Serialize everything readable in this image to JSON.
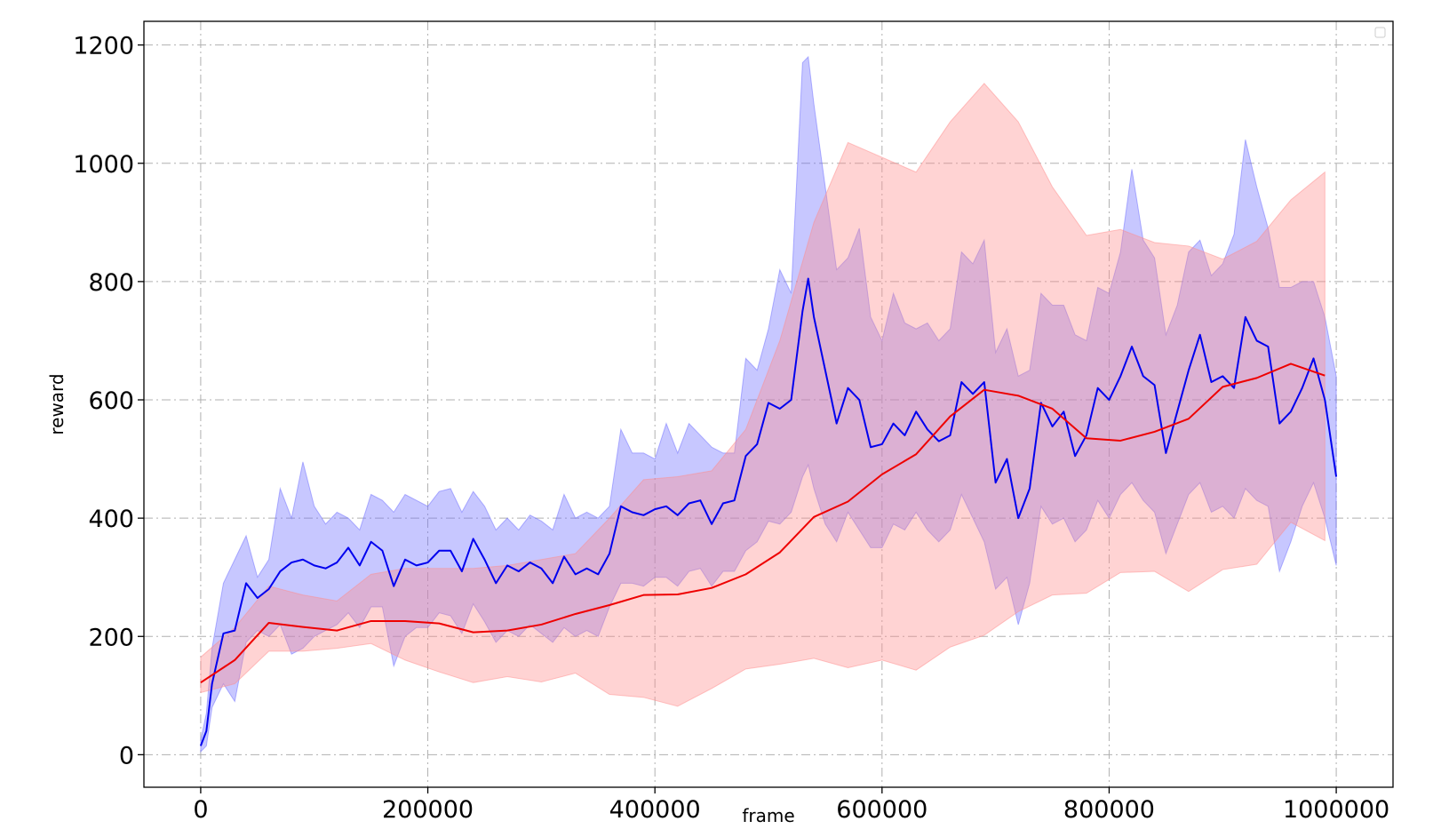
{
  "chart_data": {
    "type": "line",
    "title": "",
    "xlabel": "frame",
    "ylabel": "reward",
    "xlim": [
      -50000,
      1050000
    ],
    "ylim": [
      -55,
      1240
    ],
    "x_ticks": [
      0,
      200000,
      400000,
      600000,
      800000,
      1000000
    ],
    "x_tick_labels": [
      "0",
      "200000",
      "400000",
      "600000",
      "800000",
      "1000000"
    ],
    "y_ticks": [
      0,
      200,
      400,
      600,
      800,
      1000,
      1200
    ],
    "y_tick_labels": [
      "0",
      "200",
      "400",
      "600",
      "800",
      "1000",
      "1200"
    ],
    "grid": true,
    "legend": {
      "placement": "top-right",
      "entries": []
    },
    "series": [
      {
        "color": "#0000ee",
        "band_color": "#6b6bff",
        "x": [
          0,
          5000,
          10000,
          20000,
          30000,
          40000,
          50000,
          60000,
          70000,
          80000,
          90000,
          100000,
          110000,
          120000,
          130000,
          140000,
          150000,
          160000,
          170000,
          180000,
          190000,
          200000,
          210000,
          220000,
          230000,
          240000,
          250000,
          260000,
          270000,
          280000,
          290000,
          300000,
          310000,
          320000,
          330000,
          340000,
          350000,
          360000,
          370000,
          380000,
          390000,
          400000,
          410000,
          420000,
          430000,
          440000,
          450000,
          460000,
          470000,
          480000,
          490000,
          500000,
          510000,
          520000,
          530000,
          535000,
          540000,
          550000,
          560000,
          570000,
          580000,
          590000,
          600000,
          610000,
          620000,
          630000,
          640000,
          650000,
          660000,
          670000,
          680000,
          690000,
          700000,
          710000,
          720000,
          730000,
          740000,
          750000,
          760000,
          770000,
          780000,
          790000,
          800000,
          810000,
          820000,
          830000,
          840000,
          850000,
          860000,
          870000,
          880000,
          890000,
          900000,
          910000,
          920000,
          930000,
          940000,
          950000,
          960000,
          970000,
          980000,
          990000,
          1000000
        ],
        "y": [
          15,
          40,
          120,
          205,
          210,
          290,
          265,
          280,
          310,
          325,
          330,
          320,
          315,
          325,
          350,
          320,
          360,
          345,
          285,
          330,
          320,
          325,
          345,
          345,
          310,
          365,
          330,
          290,
          320,
          310,
          325,
          315,
          290,
          335,
          305,
          315,
          305,
          340,
          420,
          410,
          405,
          415,
          420,
          405,
          425,
          430,
          390,
          425,
          430,
          505,
          525,
          595,
          585,
          600,
          750,
          805,
          740,
          650,
          560,
          620,
          600,
          520,
          525,
          560,
          540,
          580,
          550,
          530,
          540,
          630,
          610,
          630,
          460,
          500,
          400,
          450,
          595,
          555,
          580,
          505,
          540,
          620,
          600,
          640,
          690,
          640,
          625,
          510,
          580,
          650,
          710,
          630,
          640,
          620,
          740,
          700,
          690,
          560,
          580,
          620,
          670,
          600,
          470
        ],
        "lower": [
          5,
          15,
          80,
          120,
          90,
          190,
          210,
          200,
          220,
          170,
          180,
          200,
          210,
          220,
          240,
          215,
          250,
          250,
          150,
          200,
          215,
          215,
          240,
          235,
          205,
          255,
          225,
          190,
          210,
          200,
          220,
          205,
          190,
          215,
          200,
          210,
          200,
          250,
          290,
          290,
          285,
          300,
          300,
          285,
          310,
          315,
          285,
          310,
          310,
          345,
          360,
          395,
          390,
          410,
          470,
          490,
          450,
          390,
          360,
          410,
          380,
          350,
          350,
          390,
          380,
          410,
          380,
          360,
          380,
          440,
          400,
          360,
          280,
          300,
          220,
          290,
          420,
          390,
          400,
          360,
          380,
          430,
          400,
          440,
          460,
          430,
          410,
          340,
          390,
          440,
          460,
          410,
          420,
          400,
          450,
          430,
          420,
          310,
          360,
          420,
          460,
          400,
          320
        ],
        "upper": [
          25,
          70,
          180,
          290,
          330,
          370,
          300,
          330,
          450,
          400,
          495,
          420,
          390,
          410,
          400,
          380,
          440,
          430,
          410,
          440,
          430,
          420,
          445,
          450,
          410,
          445,
          420,
          380,
          400,
          380,
          405,
          395,
          380,
          440,
          400,
          410,
          400,
          420,
          550,
          510,
          510,
          500,
          560,
          510,
          560,
          540,
          520,
          510,
          510,
          670,
          650,
          720,
          820,
          780,
          1170,
          1180,
          1100,
          960,
          820,
          840,
          890,
          740,
          700,
          780,
          730,
          720,
          730,
          700,
          720,
          850,
          830,
          870,
          680,
          720,
          640,
          650,
          780,
          760,
          760,
          710,
          700,
          790,
          780,
          850,
          990,
          870,
          840,
          710,
          760,
          850,
          870,
          810,
          830,
          880,
          1040,
          960,
          890,
          790,
          790,
          800,
          800,
          740,
          640
        ]
      },
      {
        "color": "#ee0000",
        "band_color": "#ff8c8c",
        "x": [
          0,
          30000,
          60000,
          90000,
          120000,
          150000,
          180000,
          210000,
          240000,
          270000,
          300000,
          330000,
          360000,
          390000,
          420000,
          450000,
          480000,
          510000,
          540000,
          570000,
          600000,
          630000,
          660000,
          690000,
          720000,
          750000,
          780000,
          810000,
          840000,
          870000,
          900000,
          930000,
          960000,
          990000
        ],
        "y": [
          122,
          160,
          223,
          216,
          210,
          226,
          226,
          222,
          207,
          210,
          220,
          238,
          253,
          270,
          271,
          282,
          305,
          342,
          402,
          428,
          474,
          508,
          572,
          617,
          607,
          585,
          535,
          531,
          546,
          568,
          622,
          637,
          661,
          641
        ],
        "lower": [
          105,
          120,
          175,
          175,
          180,
          188,
          160,
          140,
          122,
          132,
          123,
          138,
          102,
          97,
          82,
          112,
          145,
          153,
          163,
          147,
          160,
          143,
          182,
          202,
          242,
          270,
          273,
          308,
          310,
          276,
          313,
          322,
          393,
          362
        ],
        "upper": [
          165,
          215,
          285,
          270,
          260,
          305,
          315,
          315,
          315,
          320,
          330,
          340,
          400,
          465,
          470,
          480,
          550,
          700,
          900,
          1035,
          1010,
          985,
          1070,
          1135,
          1070,
          960,
          878,
          888,
          866,
          860,
          838,
          868,
          938,
          985
        ]
      }
    ]
  }
}
